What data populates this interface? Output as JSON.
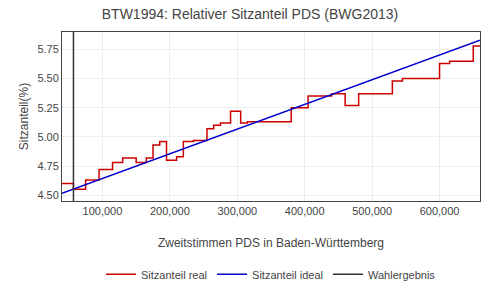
{
  "chart_data": {
    "type": "line",
    "title": "BTW1994: Relativer Sitzanteil PDS (BWG2013)",
    "xlabel": "Zweitstimmen PDS in Baden-Württemberg",
    "ylabel": "Sitzanteil(%)",
    "xlim": [
      40000,
      660000
    ],
    "ylim": [
      4.45,
      5.9
    ],
    "xticks": [
      {
        "value": 100000,
        "label": "100,000"
      },
      {
        "value": 200000,
        "label": "200,000"
      },
      {
        "value": 300000,
        "label": "300,000"
      },
      {
        "value": 400000,
        "label": "400,000"
      },
      {
        "value": 500000,
        "label": "500,000"
      },
      {
        "value": 600000,
        "label": "600,000"
      }
    ],
    "yticks": [
      {
        "value": 4.5,
        "label": "4.50"
      },
      4.75,
      {
        "value": 5.0,
        "label": "5.00"
      },
      5.25,
      {
        "value": 5.5,
        "label": "5.50"
      },
      5.75
    ],
    "grid": true,
    "legend": "bottom",
    "series": [
      {
        "name": "Sitzanteil real",
        "color": "#cc0000",
        "type": "line",
        "x": [
          40000,
          57000,
          57000,
          75000,
          75000,
          95000,
          95000,
          115000,
          115000,
          130000,
          130000,
          150000,
          150000,
          165000,
          165000,
          175000,
          175000,
          185000,
          185000,
          195000,
          195000,
          210000,
          210000,
          220000,
          220000,
          235000,
          235000,
          255000,
          255000,
          265000,
          265000,
          275000,
          275000,
          290000,
          290000,
          305000,
          305000,
          315000,
          315000,
          330000,
          330000,
          350000,
          350000,
          365000,
          365000,
          380000,
          380000,
          405000,
          405000,
          420000,
          420000,
          440000,
          440000,
          460000,
          460000,
          480000,
          480000,
          500000,
          500000,
          515000,
          515000,
          530000,
          530000,
          545000,
          545000,
          565000,
          565000,
          580000,
          580000,
          600000,
          600000,
          615000,
          615000,
          630000,
          630000,
          650000,
          650000,
          660000
        ],
        "values": [
          4.6,
          4.6,
          4.55,
          4.55,
          4.63,
          4.63,
          4.72,
          4.72,
          4.78,
          4.78,
          4.82,
          4.82,
          4.78,
          4.78,
          4.82,
          4.82,
          4.93,
          4.93,
          4.96,
          4.96,
          4.8,
          4.8,
          4.83,
          4.83,
          4.96,
          4.96,
          4.97,
          4.97,
          5.07,
          5.07,
          5.1,
          5.1,
          5.12,
          5.12,
          5.22,
          5.22,
          5.12,
          5.12,
          5.13,
          5.13,
          5.13,
          5.13,
          5.13,
          5.13,
          5.13,
          5.13,
          5.25,
          5.25,
          5.35,
          5.35,
          5.35,
          5.35,
          5.37,
          5.37,
          5.27,
          5.27,
          5.37,
          5.37,
          5.37,
          5.37,
          5.37,
          5.37,
          5.48,
          5.48,
          5.5,
          5.5,
          5.5,
          5.5,
          5.5,
          5.5,
          5.63,
          5.63,
          5.65,
          5.65,
          5.65,
          5.65,
          5.78,
          5.78
        ]
      },
      {
        "name": "Sitzanteil ideal",
        "color": "#0000cc",
        "type": "line",
        "x": [
          40000,
          660000
        ],
        "values": [
          4.515,
          5.83
        ]
      },
      {
        "name": "Wahlergebnis",
        "color": "#333333",
        "type": "vline",
        "x": [
          57000
        ]
      }
    ]
  }
}
